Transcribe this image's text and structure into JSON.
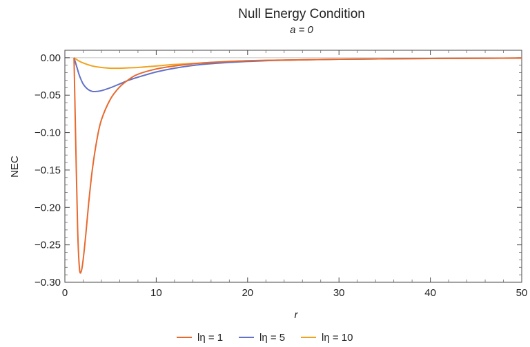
{
  "chart_data": {
    "type": "line",
    "title": "Null Energy Condition",
    "subtitle": "a = 0",
    "xlabel": "r",
    "ylabel": "NEC",
    "xlim": [
      0,
      50
    ],
    "ylim": [
      -0.3,
      0.01
    ],
    "x_ticks": [
      0,
      10,
      20,
      30,
      40,
      50
    ],
    "x_tick_labels": [
      "0",
      "10",
      "20",
      "30",
      "40",
      "50"
    ],
    "y_ticks": [
      0.0,
      -0.05,
      -0.1,
      -0.15,
      -0.2,
      -0.25,
      -0.3
    ],
    "y_tick_labels": [
      "0.00",
      "−0.05",
      "−0.10",
      "−0.15",
      "−0.20",
      "−0.25",
      "−0.30"
    ],
    "grid": false,
    "legend_position": "bottom",
    "series": [
      {
        "name": "lη = 1",
        "color": "#e8692d",
        "x": [
          1,
          1.2,
          1.4,
          1.6,
          1.8,
          2,
          2.3,
          2.6,
          3,
          3.5,
          4,
          5,
          6,
          7,
          8,
          10,
          12,
          15,
          20,
          25,
          30,
          40,
          50
        ],
        "y": [
          0,
          -0.12,
          -0.23,
          -0.282,
          -0.285,
          -0.27,
          -0.235,
          -0.195,
          -0.15,
          -0.11,
          -0.083,
          -0.055,
          -0.039,
          -0.029,
          -0.022,
          -0.015,
          -0.011,
          -0.007,
          -0.004,
          -0.003,
          -0.002,
          -0.001,
          -0.0005
        ]
      },
      {
        "name": "lη = 5",
        "color": "#6272c7",
        "x": [
          1,
          1.3,
          1.6,
          2,
          2.5,
          3,
          3.5,
          4,
          5,
          6,
          7,
          8,
          10,
          12,
          15,
          20,
          25,
          30,
          40,
          50
        ],
        "y": [
          0,
          -0.012,
          -0.024,
          -0.035,
          -0.042,
          -0.045,
          -0.045,
          -0.044,
          -0.04,
          -0.035,
          -0.03,
          -0.026,
          -0.019,
          -0.014,
          -0.009,
          -0.005,
          -0.003,
          -0.002,
          -0.001,
          -0.0005
        ]
      },
      {
        "name": "lη = 10",
        "color": "#f0a21e",
        "x": [
          1,
          1.5,
          2,
          3,
          4,
          5,
          6,
          7,
          8,
          10,
          12,
          15,
          20,
          25,
          30,
          40,
          50
        ],
        "y": [
          0,
          -0.004,
          -0.007,
          -0.011,
          -0.013,
          -0.014,
          -0.014,
          -0.0135,
          -0.013,
          -0.011,
          -0.009,
          -0.007,
          -0.004,
          -0.003,
          -0.002,
          -0.001,
          -0.0005
        ]
      }
    ]
  }
}
